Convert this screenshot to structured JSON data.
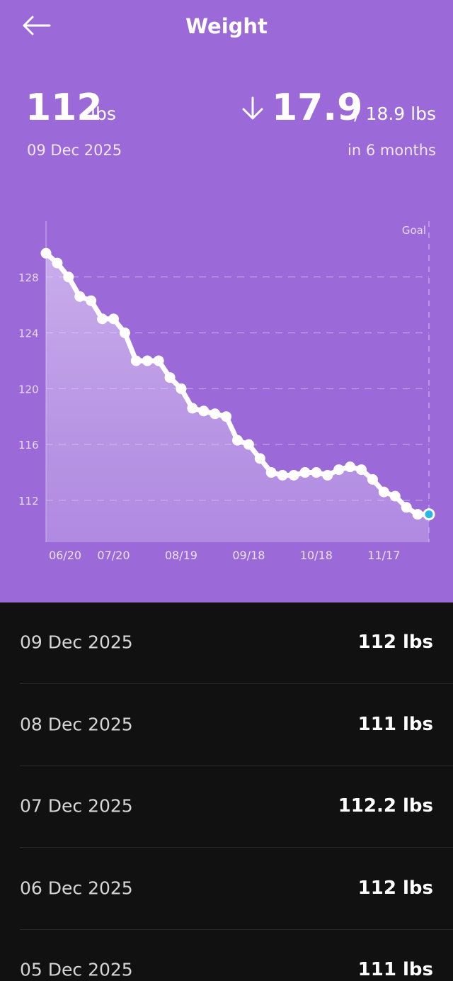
{
  "header": {
    "title": "Weight"
  },
  "summary": {
    "current": "112",
    "unit": "lbs",
    "date": "09 Dec 2025",
    "change": "17.9",
    "target": "/ 18.9 lbs",
    "period": "in 6 months"
  },
  "chart_data": {
    "type": "line",
    "color": "#ffffff",
    "marker_color": "#ffffff",
    "last_point_color": "#29b6e6",
    "grid": true,
    "annotation": "Goal",
    "categories": [
      "06/20",
      null,
      null,
      null,
      null,
      null,
      "07/20",
      null,
      null,
      null,
      null,
      null,
      "08/19",
      null,
      null,
      null,
      null,
      null,
      "09/18",
      null,
      null,
      null,
      null,
      null,
      "10/18",
      null,
      null,
      null,
      null,
      null,
      "11/17",
      null,
      null,
      null,
      null
    ],
    "values": [
      129.7,
      129.0,
      128.0,
      126.6,
      126.3,
      125.0,
      125.0,
      124.0,
      122.0,
      122.0,
      122.0,
      120.8,
      120.0,
      118.6,
      118.4,
      118.2,
      118.0,
      116.3,
      116.0,
      115.0,
      114.0,
      113.8,
      113.8,
      114.0,
      114.0,
      113.8,
      114.2,
      114.4,
      114.2,
      113.5,
      112.6,
      112.3,
      111.5,
      111.0,
      111.0
    ],
    "ylim": [
      109,
      132
    ],
    "yticks": [
      112,
      116,
      120,
      124,
      128
    ]
  },
  "entries": [
    {
      "date": "09 Dec 2025",
      "weight": "112 lbs"
    },
    {
      "date": "08 Dec 2025",
      "weight": "111 lbs"
    },
    {
      "date": "07 Dec 2025",
      "weight": "112.2 lbs"
    },
    {
      "date": "06 Dec 2025",
      "weight": "112 lbs"
    },
    {
      "date": "05 Dec 2025",
      "weight": "111 lbs"
    }
  ]
}
